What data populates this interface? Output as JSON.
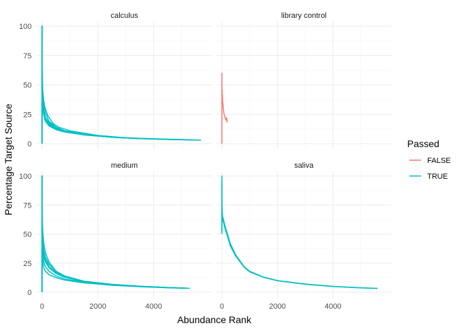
{
  "chart_data": {
    "type": "line",
    "xlabel": "Abundance Rank",
    "ylabel": "Percentage Target Source",
    "xlim": [
      -200,
      6100
    ],
    "ylim": [
      0,
      100
    ],
    "x_ticks": [
      0,
      2000,
      4000
    ],
    "y_ticks": [
      0,
      25,
      50,
      75,
      100
    ],
    "grid": true,
    "legend": {
      "title": "Passed",
      "position": "right",
      "entries": [
        {
          "label": "FALSE",
          "color": "#F8766D"
        },
        {
          "label": "TRUE",
          "color": "#00BFC4"
        }
      ]
    },
    "panels": [
      {
        "name": "calculus",
        "series": [
          {
            "passed": "TRUE",
            "x": [
              0,
              1,
              2,
              5,
              10,
              25,
              50,
              100,
              200,
              400,
              600,
              1000,
              2000,
              3000,
              4000,
              5000,
              5700
            ],
            "y": [
              0,
              100,
              80,
              64,
              55,
              45,
              38,
              31,
              24,
              17,
              14,
              11,
              7,
              5,
              4,
              3.5,
              3
            ]
          },
          {
            "passed": "TRUE",
            "x": [
              0,
              1,
              3,
              10,
              30,
              60,
              120,
              250,
              500,
              800,
              1500,
              2500,
              3500,
              4500,
              5300
            ],
            "y": [
              0,
              100,
              70,
              50,
              40,
              33,
              26,
              19,
              14,
              11,
              8,
              5.5,
              4.5,
              3.8,
              3.3
            ]
          },
          {
            "passed": "TRUE",
            "x": [
              0,
              1,
              3,
              10,
              30,
              60,
              120,
              250,
              500,
              800,
              1500,
              2500,
              3500,
              4500,
              5600
            ],
            "y": [
              0,
              100,
              60,
              42,
              34,
              28,
              22,
              17,
              13,
              10.5,
              7.5,
              5.5,
              4.3,
              3.6,
              3
            ]
          },
          {
            "passed": "TRUE",
            "x": [
              0,
              1,
              3,
              10,
              30,
              60,
              120,
              250,
              500,
              800,
              1500,
              2500,
              3500,
              4800
            ],
            "y": [
              0,
              100,
              55,
              38,
              30,
              26,
              21,
              16,
              12,
              10,
              7.5,
              5.5,
              4.3,
              3.4
            ]
          },
          {
            "passed": "TRUE",
            "x": [
              0,
              1,
              3,
              10,
              30,
              60,
              120,
              250,
              500,
              800,
              1500,
              2500,
              3500,
              4600
            ],
            "y": [
              0,
              100,
              48,
              36,
              29,
              24,
              19,
              15,
              12,
              10,
              7.5,
              5.5,
              4.3,
              3.5
            ]
          },
          {
            "passed": "TRUE",
            "x": [
              0,
              1,
              3,
              10,
              30,
              60,
              120,
              250,
              500,
              800,
              1500,
              2500,
              3500,
              4500,
              5500
            ],
            "y": [
              0,
              100,
              42,
              35,
              30,
              26,
              22,
              18,
              14,
              11,
              8,
              5.8,
              4.5,
              3.7,
              3.1
            ]
          }
        ]
      },
      {
        "name": "library control",
        "series": [
          {
            "passed": "FALSE",
            "x": [
              0,
              1,
              2,
              3,
              5,
              8,
              12,
              18,
              25,
              35,
              50,
              70,
              90,
              120,
              150,
              170,
              190
            ],
            "y": [
              0,
              60,
              48,
              40,
              38,
              46,
              40,
              42,
              36,
              34,
              30,
              26,
              24,
              22,
              20,
              22,
              18
            ]
          }
        ]
      },
      {
        "name": "medium",
        "series": [
          {
            "passed": "TRUE",
            "x": [
              0,
              1,
              3,
              10,
              30,
              60,
              120,
              250,
              500,
              800,
              1500,
              2500,
              3500,
              4500,
              5300
            ],
            "y": [
              0,
              100,
              80,
              60,
              50,
              42,
              34,
              26,
              18,
              14,
              9,
              6.5,
              5,
              4,
              3.3
            ]
          },
          {
            "passed": "TRUE",
            "x": [
              0,
              1,
              3,
              10,
              30,
              60,
              120,
              250,
              500,
              800,
              1500,
              2500,
              3500,
              4500,
              5200
            ],
            "y": [
              0,
              100,
              68,
              50,
              42,
              36,
              30,
              24,
              18,
              14,
              9.5,
              6.8,
              5.2,
              4.1,
              3.5
            ]
          },
          {
            "passed": "TRUE",
            "x": [
              0,
              1,
              3,
              10,
              30,
              60,
              120,
              250,
              500,
              800,
              1500,
              2500,
              3500,
              4500,
              5000
            ],
            "y": [
              0,
              100,
              60,
              45,
              38,
              33,
              28,
              22,
              17,
              13.5,
              9,
              6.5,
              5,
              4,
              3.6
            ]
          },
          {
            "passed": "TRUE",
            "x": [
              0,
              1,
              3,
              10,
              30,
              60,
              120,
              250,
              500,
              800,
              1500,
              2500,
              3500,
              4500,
              5200
            ],
            "y": [
              0,
              100,
              50,
              40,
              35,
              30,
              26,
              21,
              16,
              13,
              9,
              6.5,
              5,
              4,
              3.4
            ]
          },
          {
            "passed": "TRUE",
            "x": [
              0,
              1,
              3,
              10,
              30,
              60,
              120,
              250,
              500,
              800,
              1500,
              2500,
              3500,
              4500,
              5100
            ],
            "y": [
              0,
              100,
              45,
              35,
              30,
              26,
              22,
              18,
              14,
              11.5,
              8.5,
              6.2,
              4.8,
              3.9,
              3.5
            ]
          },
          {
            "passed": "TRUE",
            "x": [
              0,
              1,
              3,
              10,
              30,
              60,
              120,
              250,
              500,
              800,
              1500,
              2500,
              3500,
              4500,
              5200
            ],
            "y": [
              0,
              100,
              38,
              30,
              25,
              21,
              18,
              15,
              12.5,
              10.5,
              8,
              6,
              4.7,
              3.8,
              3.3
            ]
          }
        ]
      },
      {
        "name": "saliva",
        "series": [
          {
            "passed": "TRUE",
            "x": [
              0,
              1,
              3,
              8,
              15,
              30,
              60,
              100,
              200,
              300,
              500,
              800,
              1000,
              1500,
              2000,
              3000,
              4000,
              5000,
              5600
            ],
            "y": [
              50,
              100,
              80,
              72,
              68,
              65,
              62,
              58,
              50,
              42,
              32,
              22,
              18,
              13,
              10,
              7,
              5,
              3.8,
              3.3
            ]
          },
          {
            "passed": "TRUE",
            "x": [
              0,
              1,
              3,
              8,
              15,
              30,
              60,
              100,
              200,
              300,
              500,
              800,
              1000,
              1500,
              2000,
              3000,
              4000,
              5000,
              5600
            ],
            "y": [
              52,
              95,
              75,
              68,
              64,
              62,
              60,
              56,
              48,
              40,
              31,
              21.5,
              17.5,
              12.8,
              9.8,
              6.8,
              4.9,
              3.7,
              3.2
            ]
          }
        ]
      }
    ]
  }
}
